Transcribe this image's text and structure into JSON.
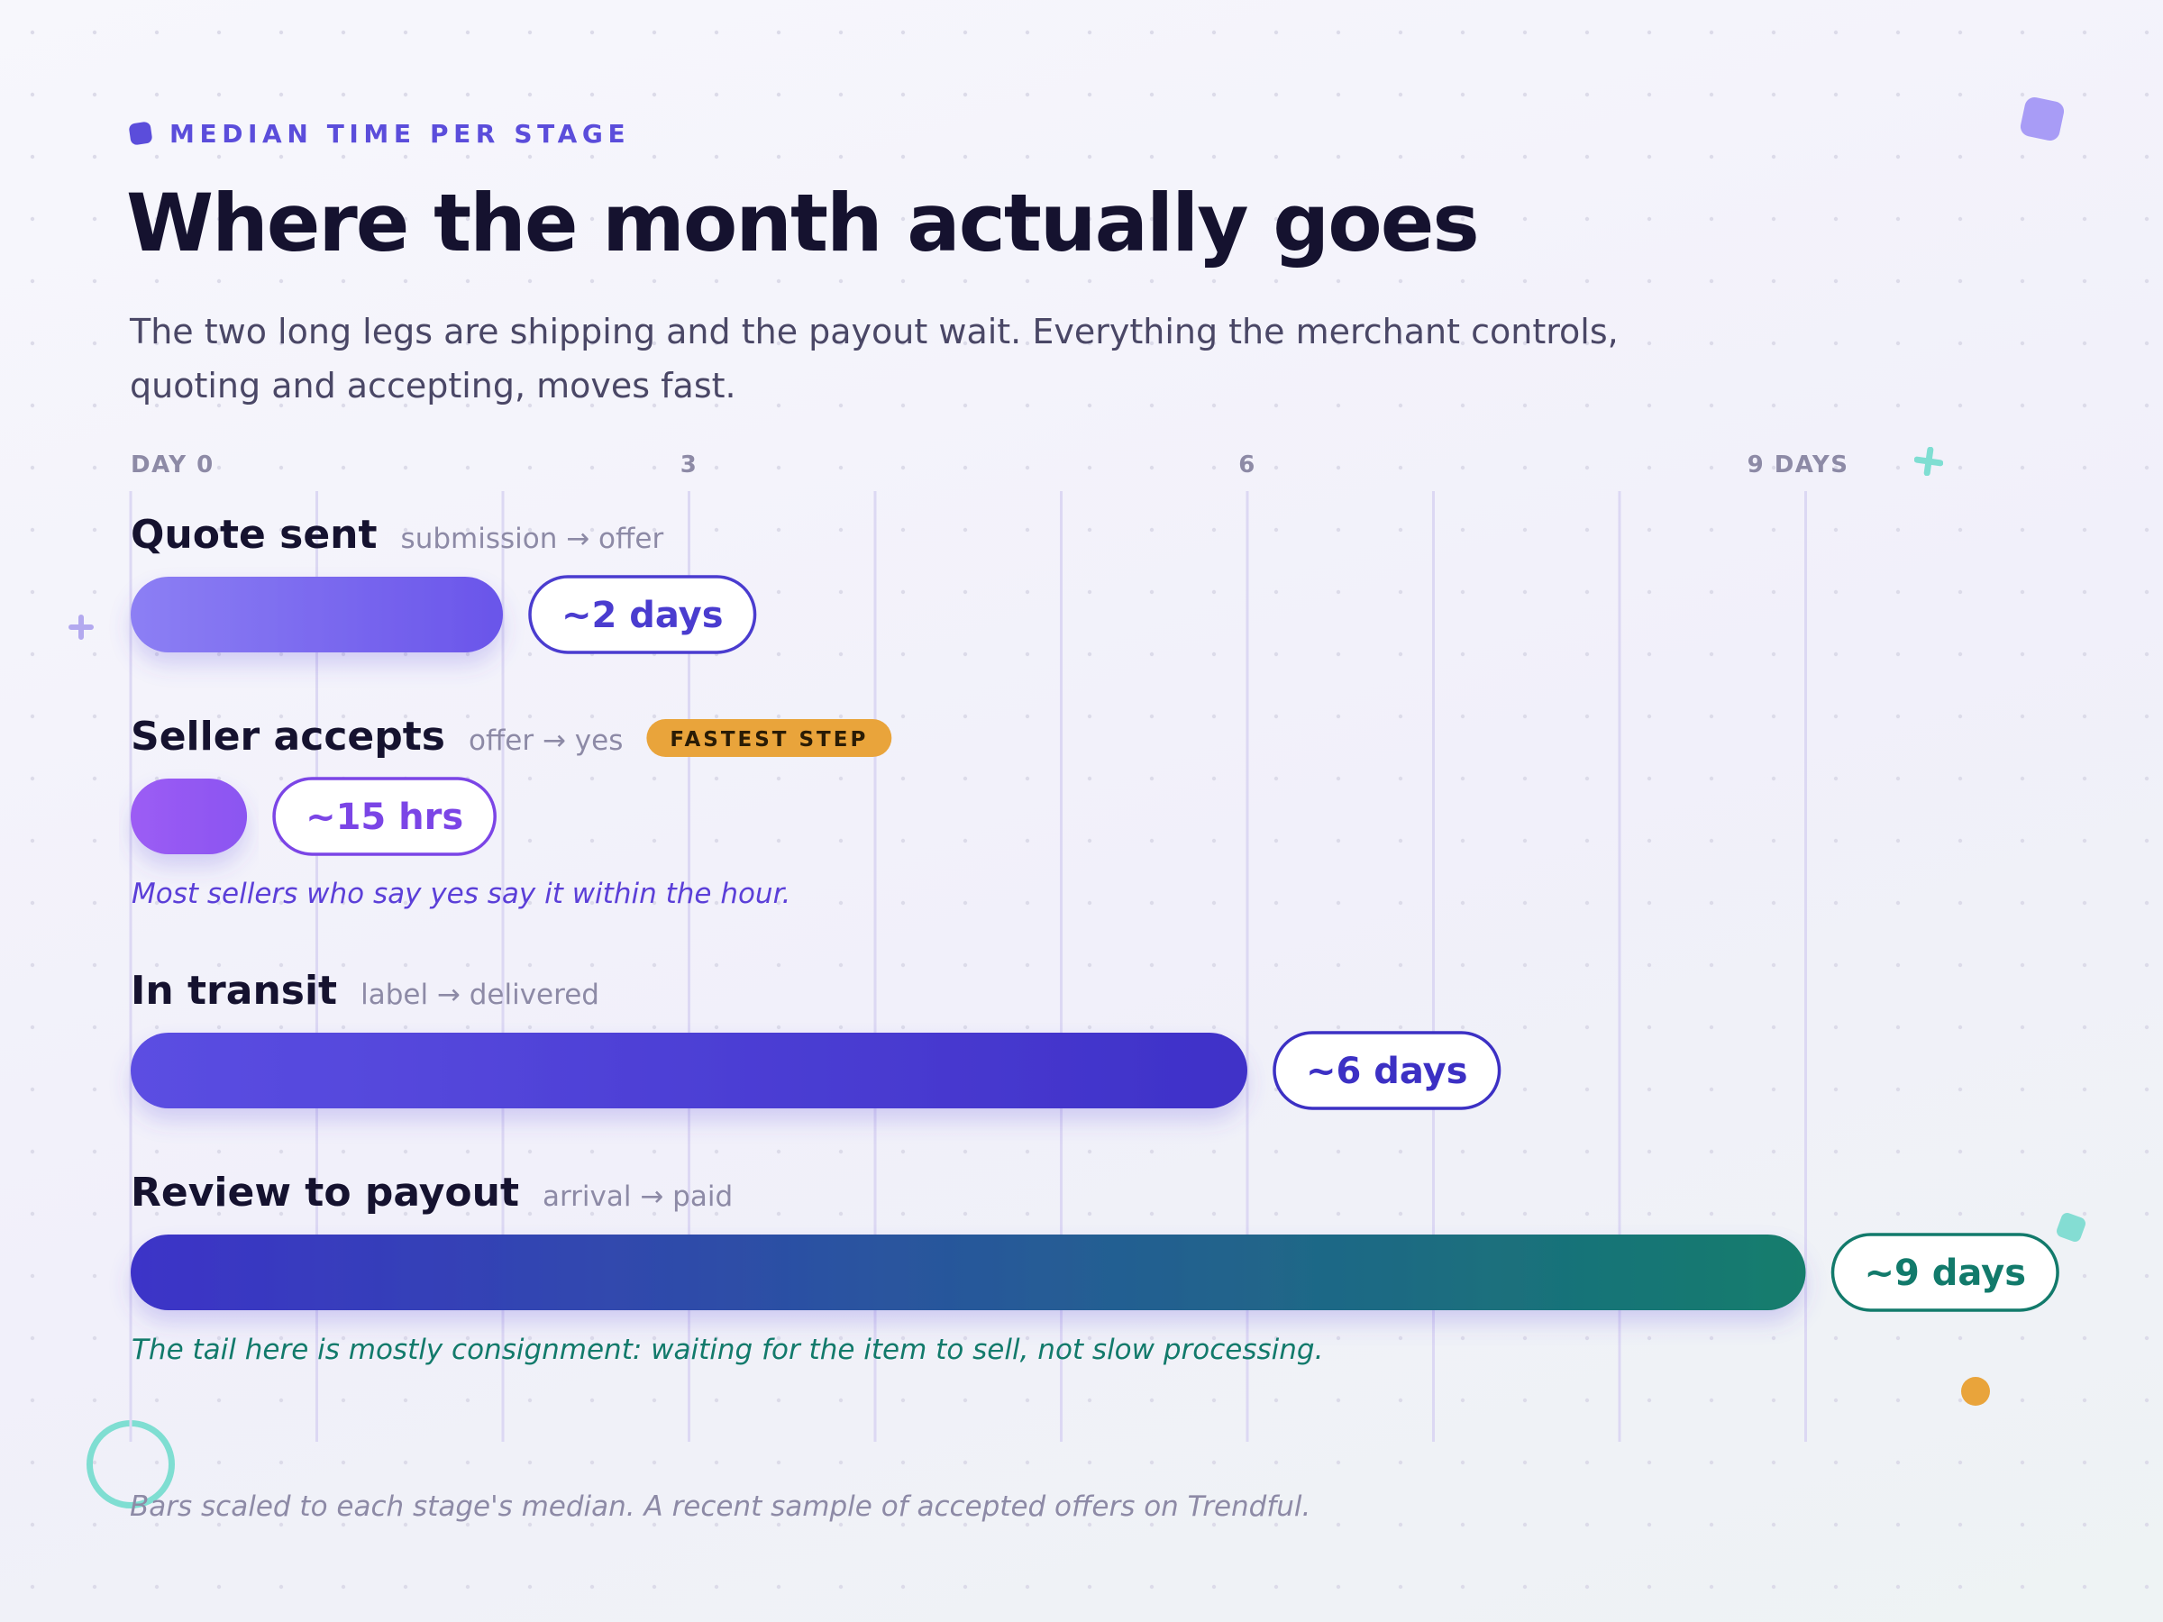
{
  "eyebrow": "MEDIAN TIME PER STAGE",
  "title": "Where the month actually goes",
  "subtitle": "The two long legs are shipping and the payout wait. Everything the merchant controls, quoting and accepting, moves fast.",
  "footnote": "Bars scaled to each stage's median. A recent sample of accepted offers on Trendful.",
  "colors": {
    "accent": "#5b4ddb",
    "dark": "#15122f",
    "muted": "#8d8aa6",
    "badge": "#e9a43b",
    "teal": "#127a6b"
  },
  "chart_data": {
    "type": "bar",
    "orientation": "horizontal",
    "axis": {
      "ticks": [
        {
          "value": 0,
          "label": "DAY 0"
        },
        {
          "value": 3,
          "label": "3"
        },
        {
          "value": 6,
          "label": "6"
        },
        {
          "value": 9,
          "label": "9 DAYS"
        }
      ],
      "xlim": [
        0,
        10
      ],
      "grid_step": 1,
      "grid": true
    },
    "stages": [
      {
        "name": "Quote sent",
        "range": "submission → offer",
        "value_days": 2,
        "value_label": "~2 days",
        "colors": [
          "#8c7ff4",
          "#6a55ea"
        ],
        "label_color": "#4a3ccf"
      },
      {
        "name": "Seller accepts",
        "range": "offer → yes",
        "badge": "FASTEST STEP",
        "value_days": 0.625,
        "value_label": "~15 hrs",
        "colors": [
          "#9c5cf4",
          "#8b55f1"
        ],
        "label_color": "#7b45e6",
        "note": "Most sellers who say yes say it within the hour.",
        "note_color": "#5b3fd8"
      },
      {
        "name": "In transit",
        "range": "label → delivered",
        "value_days": 6,
        "value_label": "~6 days",
        "colors": [
          "#5b4ee2",
          "#3f31c8"
        ],
        "label_color": "#3c30c4"
      },
      {
        "name": "Review to payout",
        "range": "arrival → paid",
        "value_days": 9,
        "value_label": "~9 days",
        "colors": [
          "#3c33c8",
          "#137d6c"
        ],
        "label_color": "#127a6b",
        "note": "The tail here is mostly consignment: waiting for the item to sell, not slow processing.",
        "note_color": "#127a6b"
      }
    ]
  }
}
